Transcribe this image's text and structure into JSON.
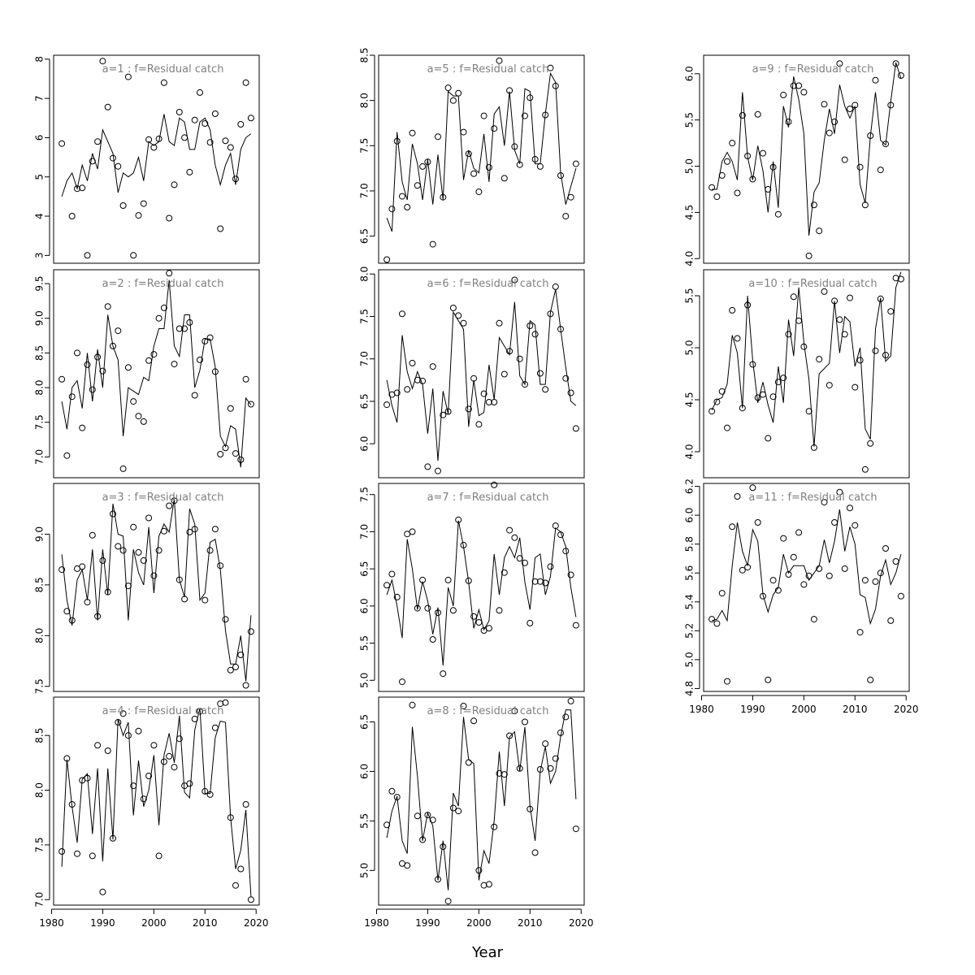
{
  "chart_data": {
    "type": "line",
    "xlabel": "Year",
    "x_ticks": [
      1980,
      1990,
      2000,
      2010,
      2020
    ],
    "years": [
      1982,
      1983,
      1984,
      1985,
      1986,
      1987,
      1988,
      1989,
      1990,
      1991,
      1992,
      1993,
      1994,
      1995,
      1996,
      1997,
      1998,
      1999,
      2000,
      2001,
      2002,
      2003,
      2004,
      2005,
      2006,
      2007,
      2008,
      2009,
      2010,
      2011,
      2012,
      2013,
      2014,
      2015,
      2016,
      2017,
      2018,
      2019
    ],
    "panels": [
      {
        "title": "a=1  :  f=Residual catch",
        "ylim": [
          2.8,
          8.1
        ],
        "yticks": [
          3,
          4,
          5,
          6,
          7,
          8
        ],
        "fitted": [
          4.5,
          4.9,
          5.1,
          4.7,
          5.3,
          4.9,
          5.6,
          5.2,
          6.2,
          5.9,
          5.6,
          4.6,
          5.1,
          5.0,
          5.1,
          5.5,
          4.9,
          5.9,
          5.8,
          5.9,
          6.6,
          5.9,
          5.8,
          6.5,
          6.4,
          5.7,
          5.7,
          6.4,
          6.5,
          6.2,
          5.3,
          4.8,
          5.3,
          5.6,
          4.8,
          5.7,
          6.0,
          6.1
        ],
        "observed": [
          5.85,
          null,
          4.0,
          4.7,
          4.72,
          3.0,
          5.4,
          5.9,
          7.95,
          6.78,
          5.48,
          5.27,
          4.27,
          7.55,
          3.0,
          4.02,
          4.32,
          5.95,
          5.75,
          5.97,
          7.4,
          3.95,
          4.8,
          6.65,
          6.0,
          5.12,
          6.45,
          7.15,
          6.36,
          5.88,
          6.61,
          3.68,
          5.92,
          5.75,
          4.95,
          6.34,
          7.4,
          6.5
        ]
      },
      {
        "title": "a=2  :  f=Residual catch",
        "ylim": [
          6.7,
          9.7
        ],
        "yticks": [
          7.0,
          7.5,
          8.0,
          8.5,
          9.0,
          9.5
        ],
        "fitted": [
          7.8,
          7.4,
          8.0,
          8.1,
          7.7,
          8.5,
          7.8,
          8.55,
          8.0,
          9.05,
          8.6,
          8.4,
          7.3,
          8.0,
          7.95,
          7.9,
          8.15,
          8.1,
          8.6,
          8.85,
          8.85,
          9.55,
          8.6,
          8.45,
          9.05,
          9.05,
          8.0,
          8.25,
          8.7,
          8.7,
          8.3,
          7.3,
          7.15,
          7.45,
          7.4,
          6.85,
          7.85,
          7.75
        ],
        "observed": [
          8.12,
          7.02,
          7.87,
          8.5,
          7.42,
          8.33,
          7.97,
          8.44,
          8.24,
          9.17,
          8.6,
          8.82,
          6.83,
          8.29,
          7.8,
          7.59,
          7.51,
          8.39,
          8.48,
          9.0,
          9.15,
          9.65,
          8.34,
          8.85,
          8.85,
          8.94,
          7.89,
          8.4,
          8.67,
          8.72,
          8.23,
          7.04,
          7.13,
          7.7,
          7.05,
          6.96,
          8.12,
          7.76
        ]
      },
      {
        "title": "a=3  :  f=Residual catch",
        "ylim": [
          7.45,
          9.5
        ],
        "yticks": [
          7.5,
          8.0,
          8.5,
          9.0
        ],
        "fitted": [
          8.8,
          8.35,
          8.1,
          8.55,
          8.65,
          8.35,
          8.85,
          8.15,
          8.85,
          8.4,
          9.3,
          9.0,
          8.98,
          8.15,
          8.85,
          8.62,
          8.5,
          9.07,
          8.42,
          8.98,
          9.1,
          9.02,
          9.35,
          8.55,
          8.38,
          9.25,
          9.1,
          8.35,
          8.42,
          8.92,
          8.95,
          8.65,
          8.05,
          7.72,
          7.72,
          8.0,
          7.55,
          8.2
        ],
        "observed": [
          8.65,
          8.24,
          8.15,
          8.66,
          8.68,
          8.33,
          8.99,
          8.19,
          8.74,
          8.43,
          9.2,
          8.88,
          8.84,
          8.49,
          9.07,
          8.82,
          8.74,
          9.16,
          8.59,
          8.84,
          9.03,
          9.28,
          9.33,
          8.55,
          8.36,
          9.02,
          9.05,
          null,
          8.35,
          8.84,
          9.05,
          8.69,
          8.16,
          7.66,
          7.69,
          7.81,
          7.51,
          8.04
        ]
      },
      {
        "title": "a=4  :  f=Residual catch",
        "ylim": [
          6.95,
          8.85
        ],
        "yticks": [
          7.0,
          7.5,
          8.0,
          8.5
        ],
        "fitted": [
          7.3,
          8.28,
          7.85,
          7.52,
          8.1,
          8.15,
          7.6,
          8.2,
          7.35,
          8.2,
          7.55,
          8.65,
          8.5,
          8.62,
          7.77,
          8.27,
          7.85,
          8.0,
          8.32,
          7.68,
          8.32,
          8.52,
          8.25,
          8.68,
          7.98,
          7.93,
          8.55,
          8.75,
          7.97,
          7.97,
          8.48,
          8.63,
          8.62,
          7.75,
          7.28,
          7.45,
          7.82,
          7.03
        ],
        "observed": [
          7.44,
          8.29,
          7.87,
          7.42,
          8.09,
          8.11,
          7.4,
          8.41,
          7.07,
          8.36,
          7.56,
          8.62,
          8.7,
          8.5,
          8.04,
          8.54,
          7.92,
          8.13,
          8.41,
          7.4,
          8.26,
          8.31,
          8.21,
          8.47,
          8.04,
          8.06,
          8.65,
          8.72,
          7.99,
          7.96,
          8.57,
          8.79,
          8.8,
          7.75,
          7.13,
          7.28,
          7.87,
          7.0
        ]
      },
      {
        "title": "a=5  :  f=Residual catch",
        "ylim": [
          6.2,
          8.5
        ],
        "yticks": [
          6.5,
          7.0,
          7.5,
          8.0,
          8.5
        ],
        "fitted": [
          6.7,
          6.55,
          7.65,
          7.1,
          6.9,
          7.52,
          7.3,
          6.9,
          7.35,
          6.85,
          7.4,
          6.9,
          8.1,
          8.05,
          8.05,
          7.12,
          7.45,
          7.25,
          7.2,
          7.63,
          7.1,
          7.85,
          7.93,
          7.5,
          8.1,
          7.45,
          7.3,
          8.13,
          8.1,
          7.3,
          7.3,
          7.85,
          8.3,
          8.2,
          7.2,
          6.85,
          7.05,
          7.25
        ],
        "observed": [
          6.24,
          6.8,
          7.55,
          6.94,
          6.82,
          7.64,
          7.06,
          7.27,
          7.32,
          6.41,
          7.6,
          6.93,
          8.14,
          8.0,
          8.08,
          7.65,
          7.41,
          7.19,
          6.99,
          7.83,
          7.26,
          7.69,
          8.44,
          7.14,
          8.11,
          7.49,
          7.29,
          7.83,
          8.03,
          7.35,
          7.27,
          7.84,
          8.36,
          8.16,
          7.17,
          6.72,
          6.93,
          7.3
        ]
      },
      {
        "title": "a=6  :  f=Residual catch",
        "ylim": [
          5.6,
          8.05
        ],
        "yticks": [
          6.0,
          6.5,
          7.0,
          7.5,
          8.0
        ],
        "fitted": [
          6.75,
          6.45,
          6.25,
          7.28,
          6.85,
          6.65,
          6.85,
          6.7,
          6.12,
          6.65,
          5.8,
          6.62,
          6.35,
          7.55,
          7.45,
          7.35,
          6.2,
          6.75,
          6.33,
          6.37,
          6.93,
          6.52,
          7.25,
          7.15,
          7.05,
          7.67,
          6.8,
          6.7,
          7.45,
          7.4,
          6.7,
          6.7,
          7.55,
          7.82,
          7.35,
          6.9,
          6.5,
          6.45
        ],
        "observed": [
          6.46,
          6.58,
          6.6,
          7.53,
          6.64,
          6.95,
          6.75,
          6.74,
          5.73,
          6.91,
          5.68,
          6.34,
          6.38,
          7.6,
          7.51,
          7.42,
          6.41,
          6.77,
          6.23,
          6.59,
          6.49,
          6.49,
          7.42,
          6.82,
          7.09,
          7.93,
          7.0,
          6.7,
          7.39,
          7.29,
          6.83,
          6.64,
          7.53,
          7.85,
          7.35,
          6.77,
          6.6,
          6.18
        ]
      },
      {
        "title": "a=7  :  f=Residual catch",
        "ylim": [
          4.85,
          7.65
        ],
        "yticks": [
          5.0,
          5.5,
          6.0,
          6.5,
          7.0,
          7.5
        ],
        "fitted": [
          6.15,
          6.35,
          6.0,
          5.57,
          6.9,
          6.5,
          5.95,
          6.33,
          6.07,
          5.62,
          5.98,
          5.2,
          6.25,
          6.0,
          7.15,
          6.8,
          6.32,
          5.7,
          5.95,
          5.68,
          5.8,
          6.7,
          6.15,
          6.65,
          6.8,
          6.65,
          6.92,
          6.32,
          5.95,
          6.65,
          6.7,
          6.15,
          6.4,
          7.05,
          7.0,
          6.8,
          6.25,
          5.85
        ],
        "observed": [
          6.28,
          6.43,
          6.12,
          4.98,
          6.97,
          7.0,
          5.97,
          6.35,
          5.97,
          5.55,
          5.91,
          5.09,
          6.35,
          5.94,
          7.16,
          6.82,
          6.34,
          5.86,
          5.78,
          5.67,
          5.7,
          7.63,
          5.94,
          6.45,
          7.02,
          6.92,
          6.64,
          6.58,
          5.77,
          6.33,
          6.33,
          6.31,
          6.53,
          7.08,
          6.96,
          6.74,
          6.42,
          5.74
        ]
      },
      {
        "title": "a=8  :  f=Residual catch",
        "ylim": [
          4.65,
          6.75
        ],
        "yticks": [
          5.0,
          5.5,
          6.0,
          6.5
        ],
        "fitted": [
          5.33,
          5.6,
          5.75,
          5.3,
          5.17,
          6.45,
          5.95,
          5.3,
          5.58,
          5.45,
          4.9,
          5.3,
          4.8,
          5.78,
          5.65,
          6.55,
          6.12,
          6.08,
          4.9,
          5.2,
          5.07,
          5.5,
          6.2,
          5.65,
          6.35,
          6.4,
          6.0,
          6.45,
          5.65,
          5.3,
          6.0,
          6.25,
          5.88,
          6.0,
          6.35,
          6.62,
          6.62,
          5.72
        ],
        "observed": [
          5.46,
          5.8,
          5.74,
          5.07,
          5.05,
          6.67,
          5.55,
          5.31,
          5.56,
          5.51,
          4.91,
          5.24,
          4.69,
          5.63,
          5.6,
          6.66,
          6.09,
          6.51,
          5.0,
          4.85,
          4.86,
          5.44,
          5.98,
          5.97,
          6.36,
          6.61,
          6.03,
          6.5,
          5.62,
          5.18,
          6.02,
          6.28,
          6.03,
          6.13,
          6.39,
          6.55,
          6.71,
          5.42
        ]
      },
      {
        "title": "a=9  :  f=Residual catch",
        "ylim": [
          3.95,
          6.2
        ],
        "yticks": [
          4.0,
          4.5,
          5.0,
          5.5,
          6.0
        ],
        "fitted": [
          4.75,
          4.75,
          5.05,
          5.15,
          5.05,
          4.85,
          5.8,
          5.1,
          4.85,
          5.22,
          4.95,
          4.5,
          5.05,
          4.55,
          5.65,
          5.42,
          5.97,
          5.72,
          5.35,
          4.25,
          4.72,
          4.82,
          5.28,
          5.62,
          5.35,
          5.88,
          5.65,
          5.52,
          5.65,
          4.8,
          4.6,
          5.32,
          5.8,
          5.28,
          5.23,
          5.7,
          6.12,
          5.95
        ],
        "observed": [
          4.77,
          4.67,
          4.9,
          5.05,
          5.25,
          4.71,
          5.55,
          5.11,
          4.86,
          5.56,
          5.14,
          4.75,
          4.99,
          4.48,
          5.77,
          5.48,
          5.87,
          5.87,
          5.8,
          4.03,
          4.58,
          4.3,
          5.67,
          5.36,
          5.48,
          6.11,
          5.07,
          5.62,
          5.66,
          4.99,
          4.58,
          5.33,
          5.93,
          4.96,
          5.24,
          5.66,
          6.11,
          5.98
        ]
      },
      {
        "title": "a=10  :  f=Residual catch",
        "ylim": [
          3.75,
          5.75
        ],
        "yticks": [
          4.0,
          4.5,
          5.0,
          5.5
        ],
        "fitted": [
          4.4,
          4.5,
          4.52,
          4.65,
          5.12,
          4.95,
          4.42,
          5.5,
          4.88,
          4.47,
          4.67,
          4.45,
          4.28,
          4.82,
          4.47,
          5.27,
          4.92,
          5.58,
          5.05,
          4.7,
          4.05,
          4.75,
          4.8,
          4.85,
          5.45,
          4.95,
          5.3,
          5.25,
          4.82,
          5.0,
          4.22,
          4.12,
          5.18,
          5.48,
          4.87,
          4.92,
          5.58,
          5.73
        ],
        "observed": [
          4.39,
          4.48,
          4.58,
          4.23,
          5.36,
          5.09,
          4.42,
          5.41,
          4.84,
          4.52,
          4.55,
          4.13,
          4.53,
          4.67,
          4.71,
          5.13,
          5.49,
          5.26,
          5.01,
          4.39,
          4.04,
          4.89,
          5.54,
          4.64,
          5.45,
          5.27,
          5.13,
          5.48,
          4.62,
          4.88,
          3.83,
          4.08,
          4.97,
          5.47,
          4.93,
          5.35,
          5.67,
          5.66
        ]
      },
      {
        "title": "a=11  :  f=Residual catch",
        "ylim": [
          4.78,
          6.22
        ],
        "yticks": [
          4.8,
          5.0,
          5.2,
          5.4,
          5.6,
          5.8,
          6.0,
          6.2
        ],
        "fitted": [
          5.27,
          5.28,
          5.34,
          5.27,
          5.65,
          5.95,
          5.75,
          5.65,
          5.9,
          5.82,
          5.45,
          5.33,
          5.45,
          5.5,
          5.73,
          5.6,
          5.65,
          5.65,
          5.65,
          5.55,
          5.6,
          5.65,
          5.83,
          5.67,
          5.82,
          6.04,
          5.75,
          5.92,
          5.8,
          5.45,
          5.43,
          5.25,
          5.35,
          5.58,
          5.69,
          5.52,
          5.6,
          5.73
        ],
        "observed": [
          5.28,
          5.25,
          5.46,
          4.85,
          5.92,
          6.13,
          5.62,
          5.64,
          6.19,
          5.95,
          5.44,
          4.86,
          5.55,
          5.48,
          5.84,
          5.59,
          5.71,
          5.88,
          5.52,
          5.58,
          5.28,
          5.63,
          6.09,
          5.58,
          5.95,
          6.16,
          5.63,
          6.05,
          5.93,
          5.19,
          5.55,
          4.86,
          5.54,
          5.6,
          5.77,
          5.27,
          5.68,
          5.44
        ]
      }
    ]
  }
}
